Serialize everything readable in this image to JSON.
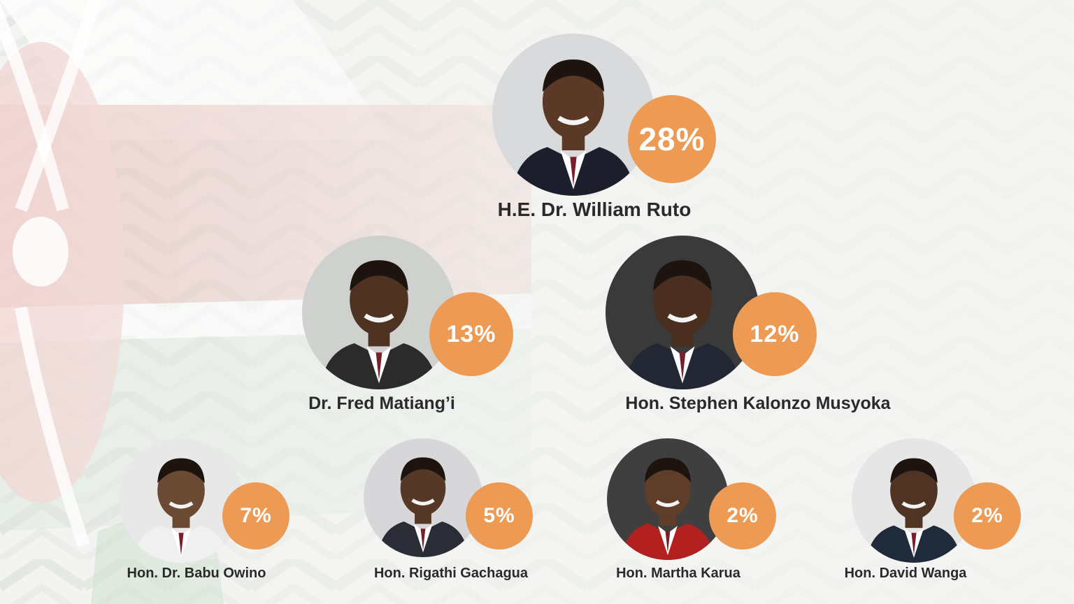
{
  "theme": {
    "accent": "#ec9a54",
    "text": "#2a2a2a",
    "flag_red": "#c8473f",
    "flag_green": "#3f8a4a"
  },
  "candidates": [
    {
      "name": "H.E. Dr. William Ruto",
      "percent": "28%",
      "value": 28,
      "photo_icon": "person-portrait-icon"
    },
    {
      "name": "Dr. Fred Matiang’i",
      "percent": "13%",
      "value": 13,
      "photo_icon": "person-portrait-icon"
    },
    {
      "name": "Hon. Stephen Kalonzo Musyoka",
      "percent": "12%",
      "value": 12,
      "photo_icon": "person-portrait-icon"
    },
    {
      "name": "Hon. Dr. Babu Owino",
      "percent": "7%",
      "value": 7,
      "photo_icon": "person-portrait-icon"
    },
    {
      "name": "Hon. Rigathi Gachagua",
      "percent": "5%",
      "value": 5,
      "photo_icon": "person-portrait-icon"
    },
    {
      "name": "Hon. Martha Karua",
      "percent": "2%",
      "value": 2,
      "photo_icon": "person-portrait-icon"
    },
    {
      "name": "Hon. David Wanga",
      "percent": "2%",
      "value": 2,
      "photo_icon": "person-portrait-icon"
    }
  ]
}
